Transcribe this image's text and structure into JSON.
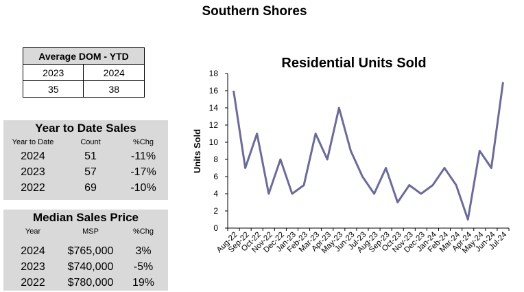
{
  "page_title": "Southern Shores",
  "dom": {
    "title": "Average DOM - YTD",
    "years": [
      "2023",
      "2024"
    ],
    "values": [
      "35",
      "38"
    ]
  },
  "ytd_sales": {
    "title": "Year to Date Sales",
    "headers": [
      "Year to Date",
      "Count",
      "%Chg"
    ],
    "rows": [
      {
        "year": "2024",
        "count": "51",
        "chg": "-11%"
      },
      {
        "year": "2023",
        "count": "57",
        "chg": "-17%"
      },
      {
        "year": "2022",
        "count": "69",
        "chg": "-10%"
      }
    ]
  },
  "median_price": {
    "title": "Median Sales Price",
    "headers": [
      "Year",
      "MSP",
      "%Chg"
    ],
    "rows": [
      {
        "year": "2024",
        "msp": "$765,000",
        "chg": "3%"
      },
      {
        "year": "2023",
        "msp": "$740,000",
        "chg": "-5%"
      },
      {
        "year": "2022",
        "msp": "$780,000",
        "chg": "19%"
      }
    ]
  },
  "chart_data": {
    "type": "line",
    "title": "Residential Units Sold",
    "ylabel": "Units Sold",
    "xlabel": "",
    "ylim": [
      0,
      18
    ],
    "yticks": [
      0,
      2,
      4,
      6,
      8,
      10,
      12,
      14,
      16,
      18
    ],
    "grid": false,
    "line_color": "#6b6b9a",
    "categories": [
      "Aug-22",
      "Sep-22",
      "Oct-22",
      "Nov-22",
      "Dec-22",
      "Jan-23",
      "Feb-23",
      "Mar-23",
      "Apr-23",
      "May-23",
      "Jun-23",
      "Jul-23",
      "Aug-23",
      "Sep-23",
      "Oct-23",
      "Nov-23",
      "Dec-23",
      "Jan-24",
      "Feb-24",
      "Mar-24",
      "Apr-24",
      "May-24",
      "Jun-24",
      "Jul-24"
    ],
    "series": [
      {
        "values": [
          16,
          7,
          11,
          4,
          8,
          4,
          5,
          11,
          8,
          14,
          9,
          6,
          4,
          7,
          3,
          5,
          4,
          5,
          7,
          5,
          1,
          9,
          7,
          17
        ]
      }
    ]
  }
}
